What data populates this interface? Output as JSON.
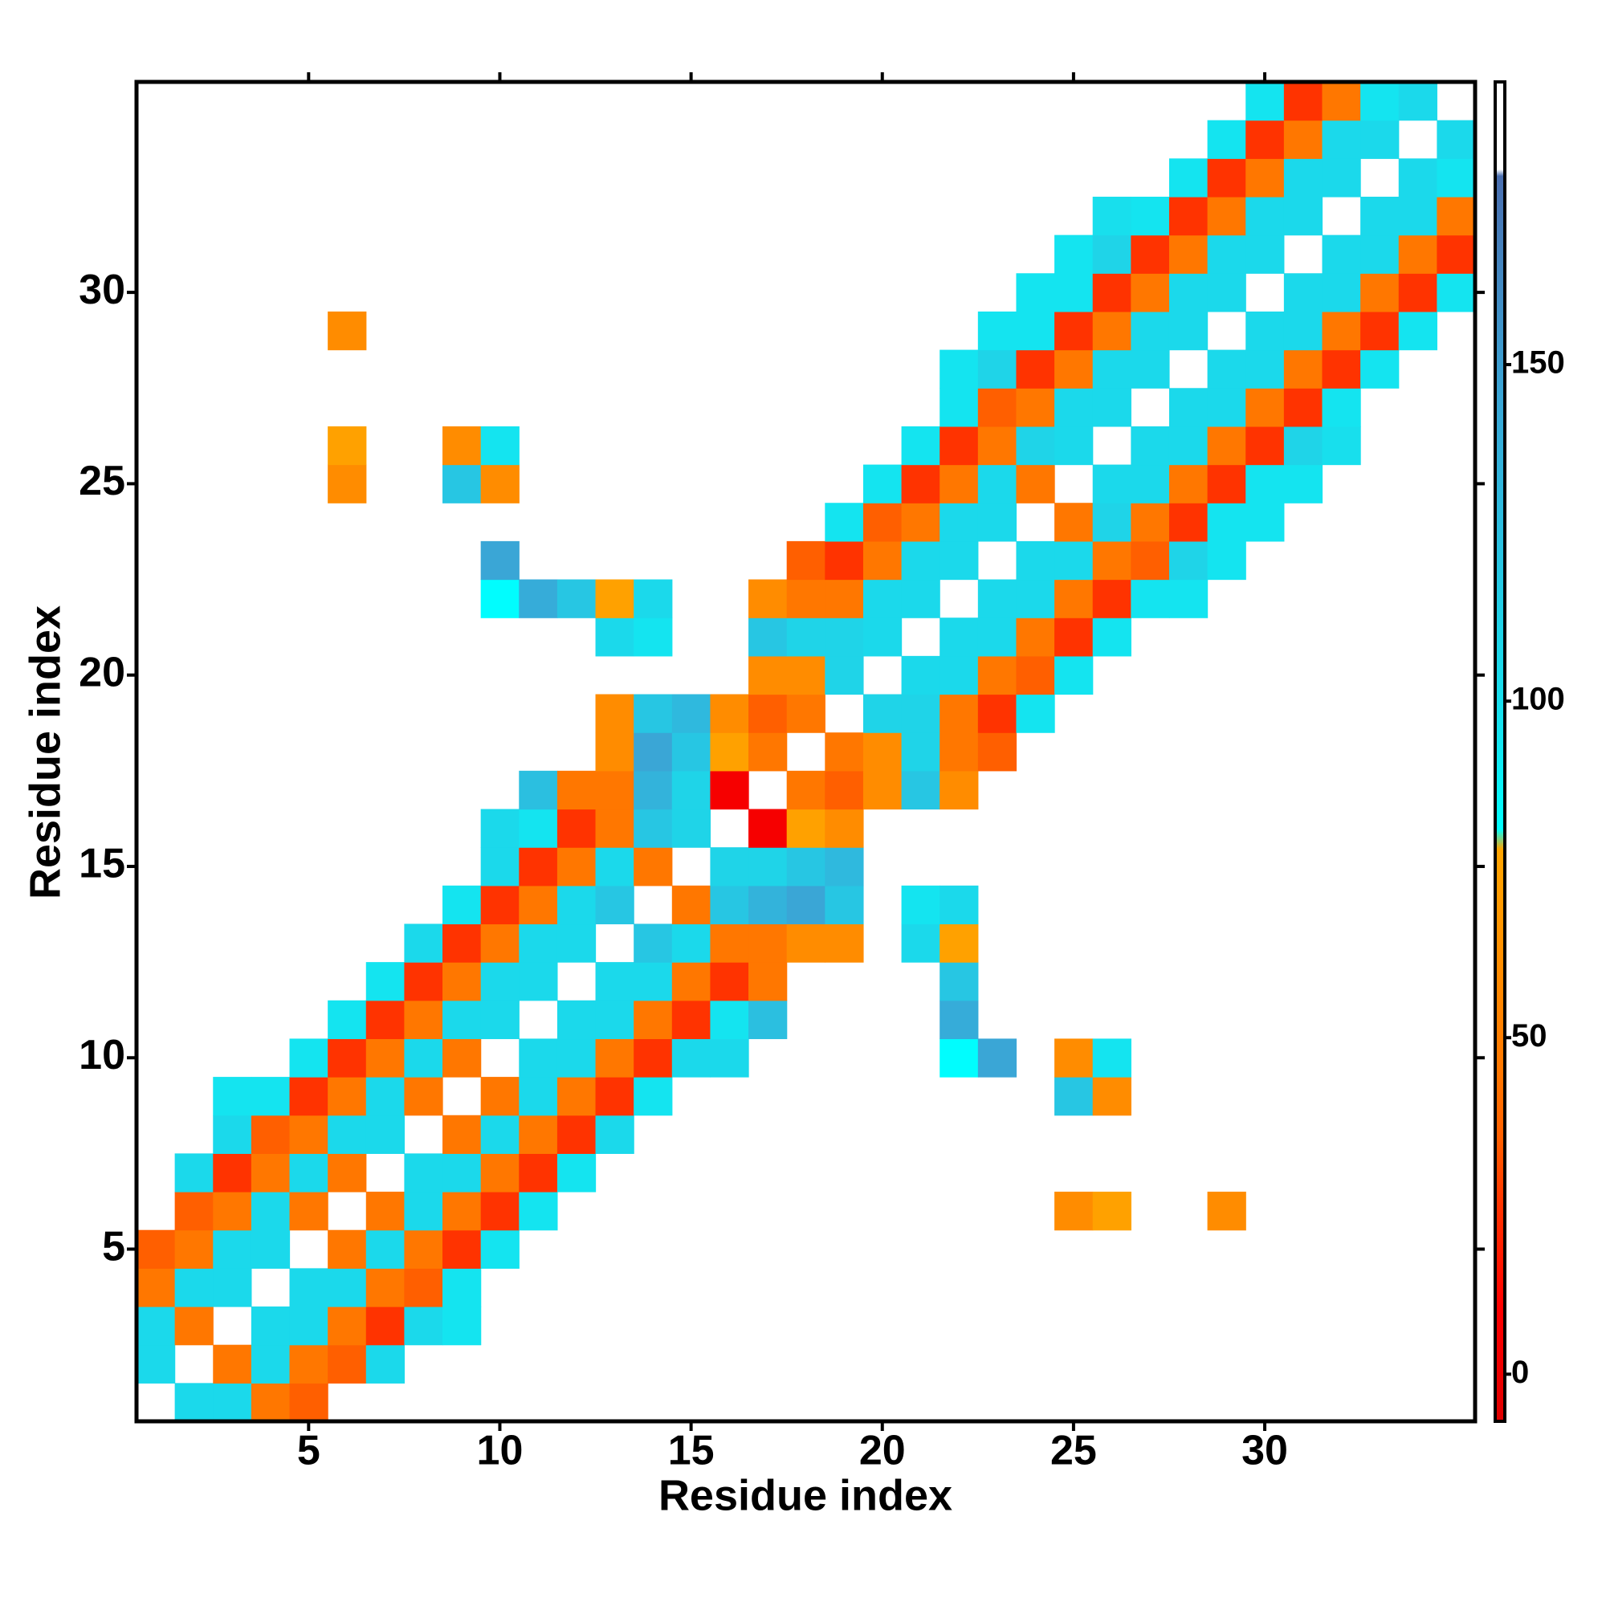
{
  "chart_data": {
    "type": "heatmap",
    "x_label": "Residue index",
    "y_label": "Residue index",
    "xlim": [
      0.5,
      35.5
    ],
    "ylim": [
      0.5,
      35.5
    ],
    "xticks": [
      5,
      10,
      15,
      20,
      25,
      30
    ],
    "yticks": [
      5,
      10,
      15,
      20,
      25,
      30
    ],
    "zlim": [
      -7,
      192
    ],
    "colorbar_ticks": [
      0,
      50,
      100,
      150
    ],
    "colorscale": [
      [
        -7,
        "#e00000"
      ],
      [
        10,
        "#ff0000"
      ],
      [
        25,
        "#ff3300"
      ],
      [
        35,
        "#ff5f00"
      ],
      [
        45,
        "#ff7700"
      ],
      [
        60,
        "#ff8c00"
      ],
      [
        78,
        "#ffa500"
      ],
      [
        81,
        "#00ffff"
      ],
      [
        95,
        "#14e4f0"
      ],
      [
        110,
        "#1fd4e8"
      ],
      [
        125,
        "#2bbfe0"
      ],
      [
        145,
        "#3aa6d6"
      ],
      [
        178,
        "#4a6fb0"
      ],
      [
        179,
        "#ffffff"
      ],
      [
        192,
        "#ffffff"
      ]
    ],
    "z": [
      [
        null,
        105,
        105,
        45,
        35,
        null,
        null,
        null,
        null,
        null,
        null,
        null,
        null,
        null,
        null,
        null,
        null,
        null,
        null,
        null,
        null,
        null,
        null,
        null,
        null,
        null,
        null,
        null,
        null,
        null,
        null,
        null,
        null,
        null,
        null
      ],
      [
        105,
        null,
        45,
        105,
        45,
        35,
        105,
        null,
        null,
        null,
        null,
        null,
        null,
        null,
        null,
        null,
        null,
        null,
        null,
        null,
        null,
        null,
        null,
        null,
        null,
        null,
        null,
        null,
        null,
        null,
        null,
        null,
        null,
        null,
        null
      ],
      [
        105,
        45,
        null,
        105,
        105,
        45,
        25,
        105,
        95,
        null,
        null,
        null,
        null,
        null,
        null,
        null,
        null,
        null,
        null,
        null,
        null,
        null,
        null,
        null,
        null,
        null,
        null,
        null,
        null,
        null,
        null,
        null,
        null,
        null,
        null
      ],
      [
        45,
        105,
        105,
        null,
        105,
        105,
        45,
        35,
        95,
        null,
        null,
        null,
        null,
        null,
        null,
        null,
        null,
        null,
        null,
        null,
        null,
        null,
        null,
        null,
        null,
        null,
        null,
        null,
        null,
        null,
        null,
        null,
        null,
        null,
        null
      ],
      [
        35,
        45,
        105,
        105,
        null,
        45,
        105,
        45,
        25,
        95,
        null,
        null,
        null,
        null,
        null,
        null,
        null,
        null,
        null,
        null,
        null,
        null,
        null,
        null,
        null,
        null,
        null,
        null,
        null,
        null,
        null,
        null,
        null,
        null,
        null
      ],
      [
        null,
        35,
        45,
        105,
        45,
        null,
        45,
        105,
        45,
        25,
        95,
        null,
        null,
        null,
        null,
        null,
        null,
        null,
        null,
        null,
        null,
        null,
        null,
        null,
        60,
        75,
        null,
        null,
        60,
        null,
        null,
        null,
        null,
        null,
        null
      ],
      [
        null,
        105,
        25,
        45,
        105,
        45,
        null,
        105,
        105,
        45,
        25,
        95,
        null,
        null,
        null,
        null,
        null,
        null,
        null,
        null,
        null,
        null,
        null,
        null,
        null,
        null,
        null,
        null,
        null,
        null,
        null,
        null,
        null,
        null,
        null
      ],
      [
        null,
        null,
        105,
        35,
        45,
        105,
        105,
        null,
        45,
        105,
        45,
        25,
        105,
        null,
        null,
        null,
        null,
        null,
        null,
        null,
        null,
        null,
        null,
        null,
        null,
        null,
        null,
        null,
        null,
        null,
        null,
        null,
        null,
        null,
        null
      ],
      [
        null,
        null,
        95,
        95,
        25,
        45,
        105,
        45,
        null,
        45,
        105,
        45,
        25,
        95,
        null,
        null,
        null,
        null,
        null,
        null,
        null,
        null,
        null,
        null,
        120,
        60,
        null,
        null,
        null,
        null,
        null,
        null,
        null,
        null,
        null
      ],
      [
        null,
        null,
        null,
        null,
        95,
        25,
        45,
        105,
        45,
        null,
        105,
        105,
        45,
        25,
        105,
        105,
        null,
        null,
        null,
        null,
        null,
        82,
        145,
        null,
        60,
        95,
        null,
        null,
        null,
        null,
        null,
        null,
        null,
        null,
        null
      ],
      [
        null,
        null,
        null,
        null,
        null,
        95,
        25,
        45,
        105,
        105,
        null,
        105,
        105,
        45,
        25,
        95,
        125,
        null,
        null,
        null,
        null,
        140,
        null,
        null,
        null,
        null,
        null,
        null,
        null,
        null,
        null,
        null,
        null,
        null,
        null
      ],
      [
        null,
        null,
        null,
        null,
        null,
        null,
        95,
        25,
        45,
        105,
        105,
        null,
        105,
        105,
        45,
        25,
        45,
        null,
        null,
        null,
        null,
        120,
        null,
        null,
        null,
        null,
        null,
        null,
        null,
        null,
        null,
        null,
        null,
        null,
        null
      ],
      [
        null,
        null,
        null,
        null,
        null,
        null,
        null,
        105,
        25,
        45,
        105,
        105,
        null,
        120,
        105,
        45,
        45,
        60,
        60,
        null,
        105,
        75,
        null,
        null,
        null,
        null,
        null,
        null,
        null,
        null,
        null,
        null,
        null,
        null,
        null
      ],
      [
        null,
        null,
        null,
        null,
        null,
        null,
        null,
        null,
        95,
        25,
        45,
        105,
        120,
        null,
        45,
        120,
        135,
        145,
        120,
        null,
        95,
        105,
        null,
        null,
        null,
        null,
        null,
        null,
        null,
        null,
        null,
        null,
        null,
        null,
        null
      ],
      [
        null,
        null,
        null,
        null,
        null,
        null,
        null,
        null,
        null,
        105,
        25,
        45,
        105,
        45,
        null,
        110,
        110,
        120,
        130,
        null,
        null,
        null,
        null,
        null,
        null,
        null,
        null,
        null,
        null,
        null,
        null,
        null,
        null,
        null,
        null
      ],
      [
        null,
        null,
        null,
        null,
        null,
        null,
        null,
        null,
        null,
        105,
        95,
        25,
        45,
        120,
        110,
        null,
        5,
        75,
        60,
        null,
        null,
        null,
        null,
        null,
        null,
        null,
        null,
        null,
        null,
        null,
        null,
        null,
        null,
        null,
        null
      ],
      [
        null,
        null,
        null,
        null,
        null,
        null,
        null,
        null,
        null,
        null,
        125,
        45,
        45,
        135,
        110,
        5,
        null,
        45,
        35,
        60,
        120,
        60,
        null,
        null,
        null,
        null,
        null,
        null,
        null,
        null,
        null,
        null,
        null,
        null,
        null
      ],
      [
        null,
        null,
        null,
        null,
        null,
        null,
        null,
        null,
        null,
        null,
        null,
        null,
        60,
        145,
        120,
        75,
        45,
        null,
        45,
        60,
        110,
        45,
        35,
        null,
        null,
        null,
        null,
        null,
        null,
        null,
        null,
        null,
        null,
        null,
        null
      ],
      [
        null,
        null,
        null,
        null,
        null,
        null,
        null,
        null,
        null,
        null,
        null,
        null,
        60,
        120,
        130,
        60,
        35,
        45,
        null,
        110,
        110,
        45,
        25,
        95,
        null,
        null,
        null,
        null,
        null,
        null,
        null,
        null,
        null,
        null,
        null
      ],
      [
        null,
        null,
        null,
        null,
        null,
        null,
        null,
        null,
        null,
        null,
        null,
        null,
        null,
        null,
        null,
        null,
        60,
        60,
        110,
        null,
        105,
        105,
        45,
        35,
        95,
        null,
        null,
        null,
        null,
        null,
        null,
        null,
        null,
        null,
        null
      ],
      [
        null,
        null,
        null,
        null,
        null,
        null,
        null,
        null,
        null,
        null,
        null,
        null,
        105,
        95,
        null,
        null,
        120,
        110,
        110,
        105,
        null,
        105,
        105,
        45,
        25,
        95,
        null,
        null,
        null,
        null,
        null,
        null,
        null,
        null,
        null
      ],
      [
        null,
        null,
        null,
        null,
        null,
        null,
        null,
        null,
        null,
        82,
        140,
        120,
        75,
        105,
        null,
        null,
        60,
        45,
        45,
        105,
        105,
        null,
        105,
        105,
        45,
        25,
        95,
        95,
        null,
        null,
        null,
        null,
        null,
        null,
        null
      ],
      [
        null,
        null,
        null,
        null,
        null,
        null,
        null,
        null,
        null,
        145,
        null,
        null,
        null,
        null,
        null,
        null,
        null,
        35,
        25,
        45,
        105,
        105,
        null,
        105,
        105,
        45,
        35,
        110,
        95,
        null,
        null,
        null,
        null,
        null,
        null
      ],
      [
        null,
        null,
        null,
        null,
        null,
        null,
        null,
        null,
        null,
        null,
        null,
        null,
        null,
        null,
        null,
        null,
        null,
        null,
        95,
        35,
        45,
        105,
        105,
        null,
        45,
        110,
        45,
        25,
        95,
        95,
        null,
        null,
        null,
        null,
        null
      ],
      [
        null,
        null,
        null,
        null,
        null,
        60,
        null,
        null,
        120,
        60,
        null,
        null,
        null,
        null,
        null,
        null,
        null,
        null,
        null,
        95,
        25,
        45,
        105,
        45,
        null,
        105,
        105,
        45,
        25,
        95,
        95,
        null,
        null,
        null,
        null
      ],
      [
        null,
        null,
        null,
        null,
        null,
        75,
        null,
        null,
        60,
        95,
        null,
        null,
        null,
        null,
        null,
        null,
        null,
        null,
        null,
        null,
        95,
        25,
        45,
        110,
        105,
        null,
        105,
        105,
        45,
        25,
        110,
        100,
        null,
        null,
        null
      ],
      [
        null,
        null,
        null,
        null,
        null,
        null,
        null,
        null,
        null,
        null,
        null,
        null,
        null,
        null,
        null,
        null,
        null,
        null,
        null,
        null,
        null,
        95,
        35,
        45,
        105,
        105,
        null,
        105,
        105,
        45,
        25,
        95,
        null,
        null,
        null
      ],
      [
        null,
        null,
        null,
        null,
        null,
        null,
        null,
        null,
        null,
        null,
        null,
        null,
        null,
        null,
        null,
        null,
        null,
        null,
        null,
        null,
        null,
        95,
        110,
        25,
        45,
        105,
        105,
        null,
        105,
        105,
        45,
        25,
        95,
        null,
        null
      ],
      [
        null,
        null,
        null,
        null,
        null,
        60,
        null,
        null,
        null,
        null,
        null,
        null,
        null,
        null,
        null,
        null,
        null,
        null,
        null,
        null,
        null,
        null,
        95,
        95,
        25,
        45,
        105,
        105,
        null,
        105,
        105,
        45,
        25,
        95,
        null
      ],
      [
        null,
        null,
        null,
        null,
        null,
        null,
        null,
        null,
        null,
        null,
        null,
        null,
        null,
        null,
        null,
        null,
        null,
        null,
        null,
        null,
        null,
        null,
        null,
        95,
        95,
        25,
        45,
        105,
        105,
        null,
        105,
        105,
        45,
        25,
        95
      ],
      [
        null,
        null,
        null,
        null,
        null,
        null,
        null,
        null,
        null,
        null,
        null,
        null,
        null,
        null,
        null,
        null,
        null,
        null,
        null,
        null,
        null,
        null,
        null,
        null,
        95,
        110,
        25,
        45,
        105,
        105,
        null,
        105,
        105,
        45,
        25
      ],
      [
        null,
        null,
        null,
        null,
        null,
        null,
        null,
        null,
        null,
        null,
        null,
        null,
        null,
        null,
        null,
        null,
        null,
        null,
        null,
        null,
        null,
        null,
        null,
        null,
        null,
        100,
        95,
        25,
        45,
        105,
        105,
        null,
        105,
        105,
        45
      ],
      [
        null,
        null,
        null,
        null,
        null,
        null,
        null,
        null,
        null,
        null,
        null,
        null,
        null,
        null,
        null,
        null,
        null,
        null,
        null,
        null,
        null,
        null,
        null,
        null,
        null,
        null,
        null,
        95,
        25,
        45,
        105,
        105,
        null,
        105,
        95
      ],
      [
        null,
        null,
        null,
        null,
        null,
        null,
        null,
        null,
        null,
        null,
        null,
        null,
        null,
        null,
        null,
        null,
        null,
        null,
        null,
        null,
        null,
        null,
        null,
        null,
        null,
        null,
        null,
        null,
        95,
        25,
        45,
        105,
        105,
        null,
        105
      ],
      [
        null,
        null,
        null,
        null,
        null,
        null,
        null,
        null,
        null,
        null,
        null,
        null,
        null,
        null,
        null,
        null,
        null,
        null,
        null,
        null,
        null,
        null,
        null,
        null,
        null,
        null,
        null,
        null,
        null,
        95,
        25,
        45,
        95,
        105,
        null
      ]
    ]
  }
}
